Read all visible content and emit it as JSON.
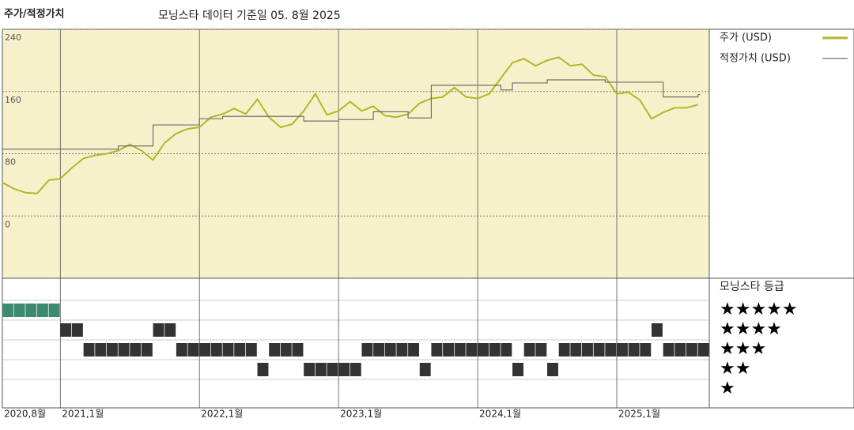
{
  "chart_data": {
    "type": "line",
    "title": "주가/적정가치",
    "subtitle": "모닝스타 데이터 기준일 05. 8월 2025",
    "x": [
      "2020-08",
      "2020-09",
      "2020-10",
      "2020-11",
      "2020-12",
      "2021-01",
      "2021-02",
      "2021-03",
      "2021-04",
      "2021-05",
      "2021-06",
      "2021-07",
      "2021-08",
      "2021-09",
      "2021-10",
      "2021-11",
      "2021-12",
      "2022-01",
      "2022-02",
      "2022-03",
      "2022-04",
      "2022-05",
      "2022-06",
      "2022-07",
      "2022-08",
      "2022-09",
      "2022-10",
      "2022-11",
      "2022-12",
      "2023-01",
      "2023-02",
      "2023-03",
      "2023-04",
      "2023-05",
      "2023-06",
      "2023-07",
      "2023-08",
      "2023-09",
      "2023-10",
      "2023-11",
      "2023-12",
      "2024-01",
      "2024-02",
      "2024-03",
      "2024-04",
      "2024-05",
      "2024-06",
      "2024-07",
      "2024-08",
      "2024-09",
      "2024-10",
      "2024-11",
      "2024-12",
      "2025-01",
      "2025-02",
      "2025-03",
      "2025-04",
      "2025-05",
      "2025-06",
      "2025-07",
      "2025-08"
    ],
    "xticks": [
      {
        "value": "2020-08",
        "label": "2020,8월"
      },
      {
        "value": "2021-01",
        "label": "2021,1월"
      },
      {
        "value": "2022-01",
        "label": "2022,1월"
      },
      {
        "value": "2023-01",
        "label": "2023,1월"
      },
      {
        "value": "2024-01",
        "label": "2024,1월"
      },
      {
        "value": "2025-01",
        "label": "2025,1월"
      }
    ],
    "ylim": [
      -80,
      240
    ],
    "yticks": [
      0,
      80,
      160,
      240
    ],
    "grid": true,
    "series": [
      {
        "name": "주가 (USD)",
        "color": "#b3b62a",
        "values": [
          43,
          35,
          30,
          29,
          46,
          48,
          62,
          74,
          78,
          80,
          84,
          92,
          84,
          72,
          94,
          106,
          112,
          114,
          127,
          131,
          138,
          131,
          150,
          127,
          114,
          118,
          135,
          157,
          130,
          135,
          147,
          135,
          141,
          129,
          127,
          131,
          145,
          151,
          153,
          165,
          153,
          151,
          157,
          177,
          197,
          202,
          193,
          200,
          204,
          193,
          195,
          181,
          179,
          157,
          159,
          149,
          125,
          133,
          139,
          139,
          143
        ]
      },
      {
        "name": "적정가치 (USD)",
        "color": "#707070",
        "values": [
          86,
          86,
          86,
          86,
          86,
          86,
          86,
          86,
          86,
          86,
          90,
          90,
          90,
          117,
          117,
          117,
          117,
          125,
          125,
          128,
          128,
          128,
          128,
          128,
          128,
          128,
          122,
          122,
          122,
          124,
          124,
          124,
          134,
          134,
          134,
          126,
          126,
          168,
          168,
          168,
          168,
          168,
          168,
          162,
          171,
          171,
          171,
          175,
          175,
          175,
          175,
          175,
          172,
          172,
          172,
          172,
          172,
          153,
          153,
          153,
          156
        ]
      }
    ],
    "rating": {
      "title": "모닝스타 등급",
      "labels": [
        "★★★★★",
        "★★★★",
        "★★★",
        "★★",
        "★"
      ],
      "color": "#333333",
      "top_color": "#3d8a70",
      "values": [
        5,
        5,
        5,
        5,
        5,
        4,
        4,
        3,
        3,
        3,
        3,
        3,
        3,
        4,
        4,
        3,
        3,
        3,
        3,
        3,
        3,
        3,
        2,
        3,
        3,
        3,
        2,
        2,
        2,
        2,
        2,
        3,
        3,
        3,
        3,
        3,
        2,
        3,
        3,
        3,
        3,
        3,
        3,
        3,
        2,
        3,
        3,
        2,
        3,
        3,
        3,
        3,
        3,
        3,
        3,
        3,
        4,
        3,
        3,
        3,
        3
      ]
    }
  }
}
